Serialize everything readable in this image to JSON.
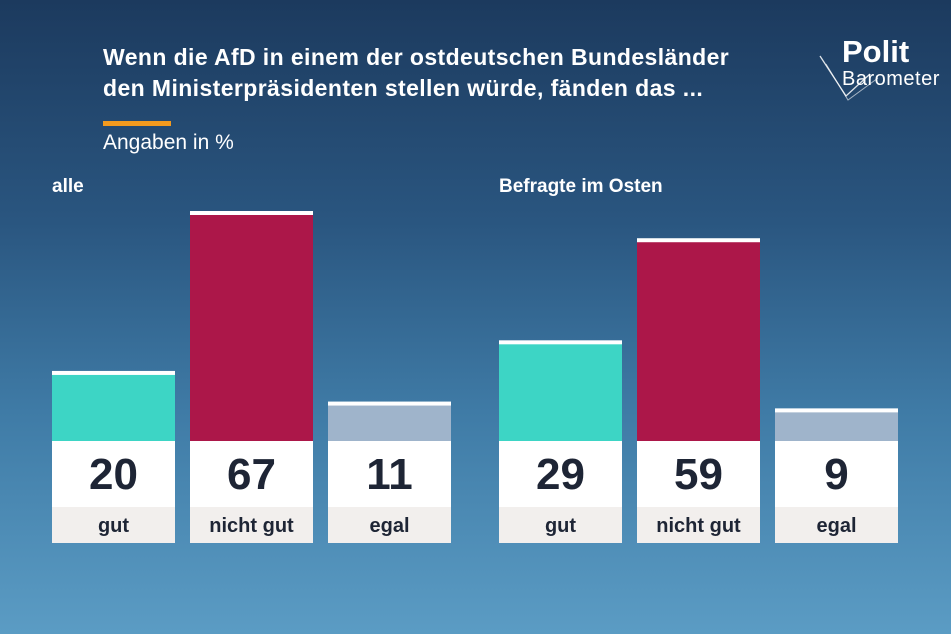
{
  "title_lines": [
    "Wenn die AfD in einem der ostdeutschen Bundesländer",
    "den Ministerpräsidenten stellen würde, fänden das ..."
  ],
  "subtitle": "Angaben in %",
  "logo": {
    "line1": "Polit",
    "line2": "Barometer"
  },
  "colors": {
    "gut": "#3dd5c5",
    "nicht_gut": "#ac1749",
    "egal": "#9fb4cb",
    "accent": "#f39a1e",
    "value_box": "#ffffff",
    "label_box": "#f2efed",
    "text_dark": "#1e2535"
  },
  "chart_data": [
    {
      "type": "bar",
      "title": "alle",
      "categories": [
        "gut",
        "nicht gut",
        "egal"
      ],
      "values": [
        20,
        67,
        11
      ],
      "ylim": [
        0,
        67
      ]
    },
    {
      "type": "bar",
      "title": "Befragte im Osten",
      "categories": [
        "gut",
        "nicht gut",
        "egal"
      ],
      "values": [
        29,
        59,
        9
      ],
      "ylim": [
        0,
        67
      ]
    }
  ]
}
